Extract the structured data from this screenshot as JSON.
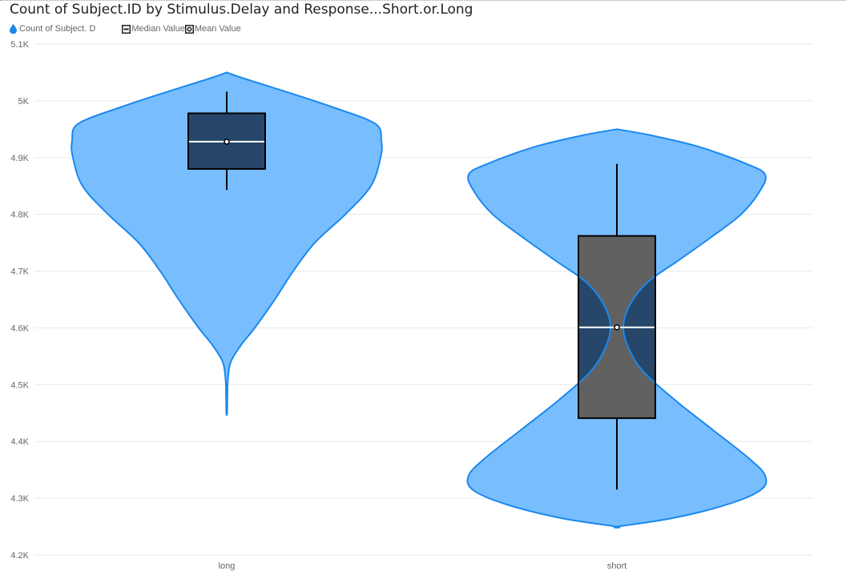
{
  "chart_data": {
    "type": "violin",
    "title": "Count of Subject.ID by Stimulus.Delay and Response...Short.or.Long",
    "legend": [
      {
        "label": "Count of Subject. D",
        "icon": "droplet-icon"
      },
      {
        "label": "Median Value",
        "icon": "median-square-icon"
      },
      {
        "label": "Mean Value",
        "icon": "mean-circle-icon"
      }
    ],
    "categories": [
      "long",
      "short"
    ],
    "y_ticks": [
      "4.2K",
      "4.3K",
      "4.4K",
      "4.5K",
      "4.6K",
      "4.7K",
      "4.8K",
      "4.9K",
      "5K",
      "5.1K"
    ],
    "ylim": [
      4200,
      5100
    ],
    "grid": true,
    "legend_position": "top-left",
    "colors": {
      "violin_fill": "#6cb8ff",
      "violin_stroke": "#1a88ee",
      "box_fill": "#27476a",
      "box_overlap_fill": "#616161",
      "median_line": "#ffffff",
      "whisker": "#000000"
    },
    "boxes": [
      {
        "category": "long",
        "min": 4843,
        "q1": 4880,
        "median": 4928,
        "mean": 4928,
        "q3": 4978,
        "max": 5016
      },
      {
        "category": "short",
        "min": 4315,
        "q1": 4441,
        "median": 4601,
        "mean": 4601,
        "q3": 4762,
        "max": 4889
      }
    ],
    "violins": [
      {
        "category": "long",
        "density": [
          [
            4450,
            0.5
          ],
          [
            4480,
            0.8
          ],
          [
            4510,
            1.5
          ],
          [
            4540,
            5
          ],
          [
            4570,
            18
          ],
          [
            4600,
            35
          ],
          [
            4650,
            60
          ],
          [
            4700,
            83
          ],
          [
            4750,
            110
          ],
          [
            4800,
            148
          ],
          [
            4850,
            180
          ],
          [
            4900,
            192
          ],
          [
            4930,
            193
          ],
          [
            4960,
            185
          ],
          [
            4990,
            130
          ],
          [
            5020,
            65
          ],
          [
            5040,
            20
          ],
          [
            5050,
            0
          ]
        ]
      },
      {
        "category": "short",
        "density": [
          [
            4250,
            0
          ],
          [
            4265,
            70
          ],
          [
            4290,
            140
          ],
          [
            4315,
            180
          ],
          [
            4340,
            185
          ],
          [
            4370,
            165
          ],
          [
            4420,
            120
          ],
          [
            4470,
            75
          ],
          [
            4520,
            35
          ],
          [
            4560,
            16
          ],
          [
            4600,
            8
          ],
          [
            4640,
            16
          ],
          [
            4680,
            38
          ],
          [
            4720,
            78
          ],
          [
            4760,
            118
          ],
          [
            4800,
            155
          ],
          [
            4840,
            178
          ],
          [
            4870,
            185
          ],
          [
            4890,
            160
          ],
          [
            4920,
            100
          ],
          [
            4940,
            40
          ],
          [
            4950,
            0
          ]
        ]
      }
    ]
  }
}
